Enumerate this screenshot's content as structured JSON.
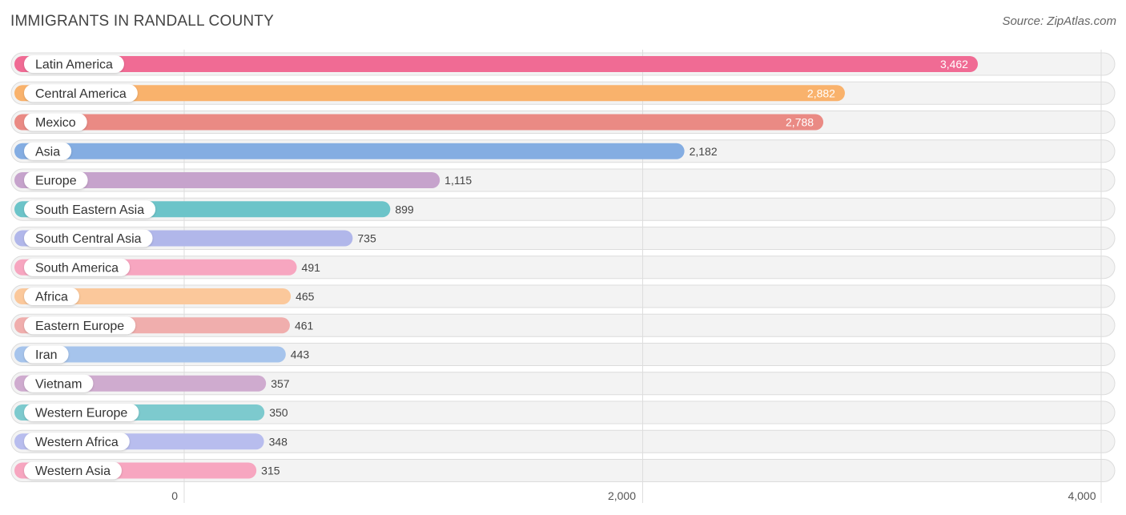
{
  "title": "IMMIGRANTS IN RANDALL COUNTY",
  "source": "Source: ZipAtlas.com",
  "chart_data": {
    "type": "bar",
    "orientation": "horizontal",
    "title": "IMMIGRANTS IN RANDALL COUNTY",
    "xlabel": "",
    "ylabel": "",
    "xlim": [
      0,
      4000
    ],
    "ticks": [
      0,
      2000,
      4000
    ],
    "tick_labels": [
      "0",
      "2,000",
      "4,000"
    ],
    "grid": true,
    "categories": [
      "Latin America",
      "Central America",
      "Mexico",
      "Asia",
      "Europe",
      "South Eastern Asia",
      "South Central Asia",
      "South America",
      "Africa",
      "Eastern Europe",
      "Iran",
      "Vietnam",
      "Western Europe",
      "Western Africa",
      "Western Asia"
    ],
    "values": [
      3462,
      2882,
      2788,
      2182,
      1115,
      899,
      735,
      491,
      465,
      461,
      443,
      357,
      350,
      348,
      315
    ],
    "value_labels": [
      "3,462",
      "2,882",
      "2,788",
      "2,182",
      "1,115",
      "899",
      "735",
      "491",
      "465",
      "461",
      "443",
      "357",
      "350",
      "348",
      "315"
    ],
    "colors": [
      "#f06b94",
      "#f9b26c",
      "#ea8a84",
      "#84ade2",
      "#c6a3cc",
      "#6cc4c9",
      "#b1b7ea",
      "#f7a6c0",
      "#fbc89b",
      "#f0aead",
      "#a6c4ec",
      "#cfabcf",
      "#7dcace",
      "#b8bdee",
      "#f7a6c0"
    ]
  }
}
